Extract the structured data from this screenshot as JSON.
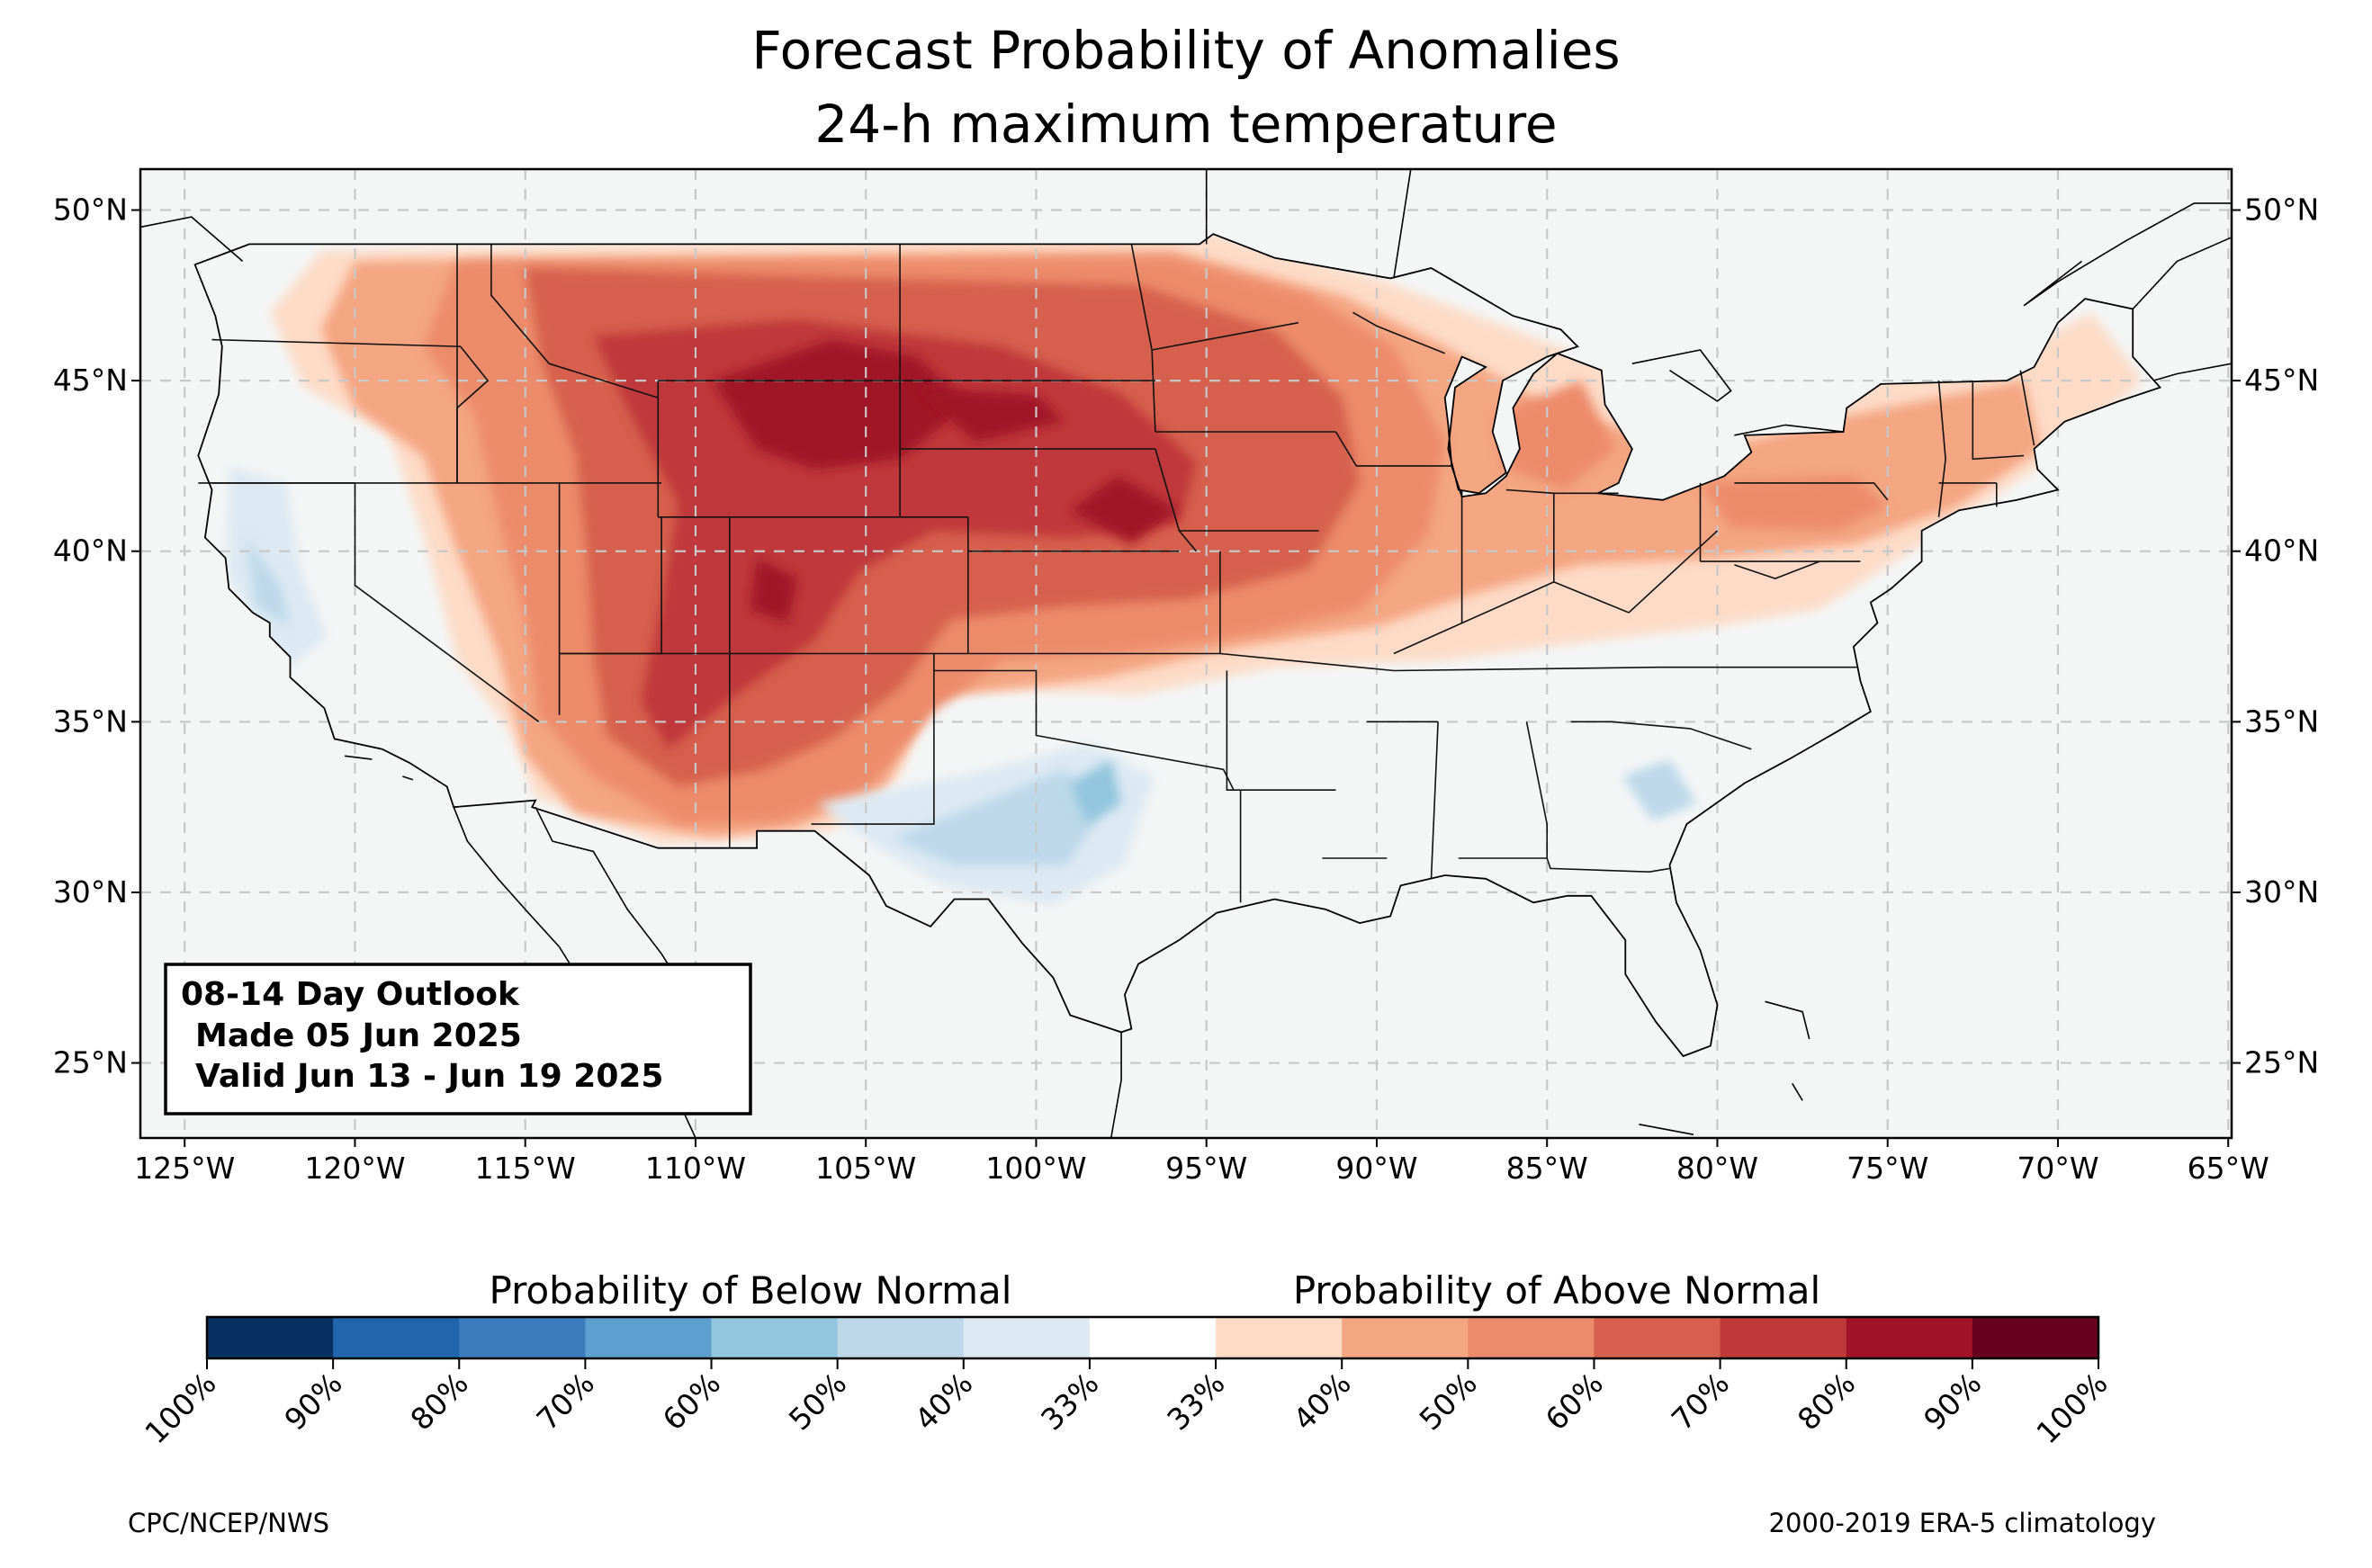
{
  "title": {
    "line1": "Forecast Probability of Anomalies",
    "line2": "24-h maximum temperature"
  },
  "map": {
    "extent": {
      "lon_min": -126.3,
      "lon_max": -64.9,
      "lat_min": 22.8,
      "lat_max": 51.2
    },
    "lat_ticks": [
      {
        "value": 50,
        "label": "50°N"
      },
      {
        "value": 45,
        "label": "45°N"
      },
      {
        "value": 40,
        "label": "40°N"
      },
      {
        "value": 35,
        "label": "35°N"
      },
      {
        "value": 30,
        "label": "30°N"
      },
      {
        "value": 25,
        "label": "25°N"
      }
    ],
    "lon_ticks": [
      {
        "value": -125,
        "label": "125°W"
      },
      {
        "value": -120,
        "label": "120°W"
      },
      {
        "value": -115,
        "label": "115°W"
      },
      {
        "value": -110,
        "label": "110°W"
      },
      {
        "value": -105,
        "label": "105°W"
      },
      {
        "value": -100,
        "label": "100°W"
      },
      {
        "value": -95,
        "label": "95°W"
      },
      {
        "value": -90,
        "label": "90°W"
      },
      {
        "value": -85,
        "label": "85°W"
      },
      {
        "value": -80,
        "label": "80°W"
      },
      {
        "value": -75,
        "label": "75°W"
      },
      {
        "value": -70,
        "label": "70°W"
      },
      {
        "value": -65,
        "label": "65°W"
      }
    ],
    "grid": "dashed",
    "background_color": "#f4f6f6",
    "border_color": "#000000",
    "state_line_color": "#8a8a8a"
  },
  "outlook": {
    "line1": "08-14 Day Outlook",
    "line2": "Made 05 Jun 2025",
    "line3": "Valid Jun 13 - Jun 19 2025"
  },
  "colorbar": {
    "below_label": "Probability of Below Normal",
    "above_label": "Probability of Above Normal",
    "colors": [
      "#053061",
      "#2166ac",
      "#3a7cbd",
      "#5d9fcf",
      "#92c5de",
      "#bcd8e9",
      "#dde9f3",
      "#ffffff",
      "#fddbc7",
      "#f4a582",
      "#ec8b6b",
      "#d6604d",
      "#c0393a",
      "#a11326",
      "#67001f"
    ],
    "tick_labels": [
      "100%",
      "90%",
      "80%",
      "70%",
      "60%",
      "50%",
      "40%",
      "33%",
      "33%",
      "40%",
      "50%",
      "60%",
      "70%",
      "80%",
      "90%",
      "100%"
    ]
  },
  "footer": {
    "left": "CPC/NCEP/NWS",
    "right": "2000-2019 ERA-5 climatology"
  }
}
